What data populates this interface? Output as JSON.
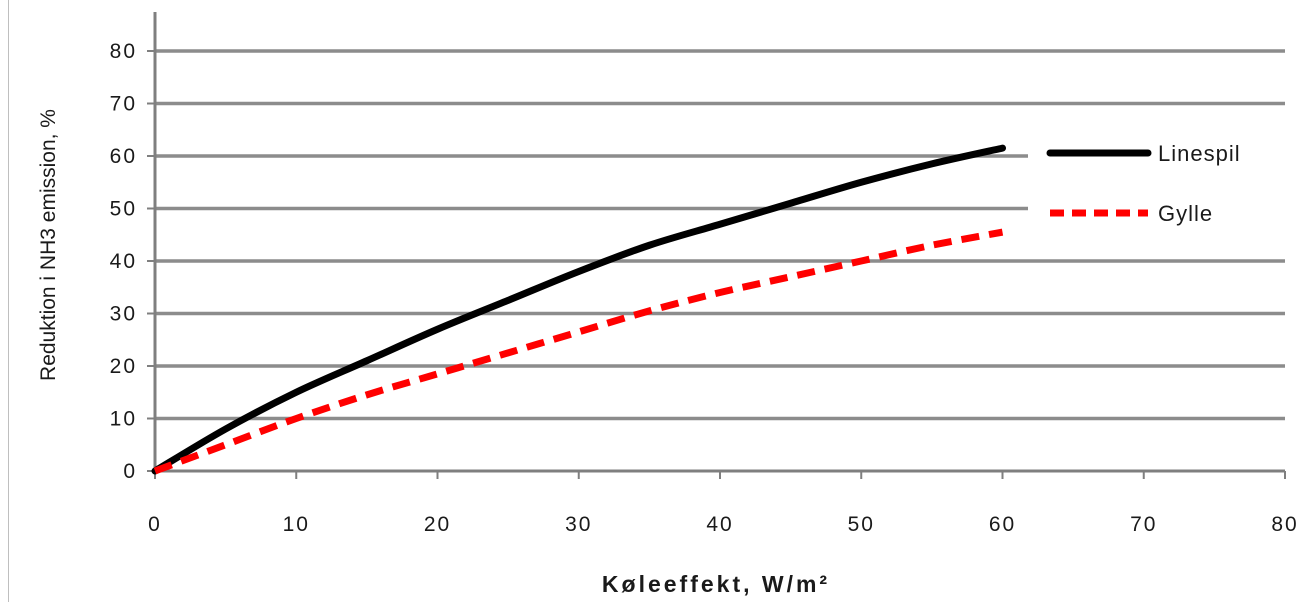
{
  "chart_data": {
    "type": "line",
    "title": "",
    "xlabel": "Køleeffekt, W/m²",
    "ylabel": "Reduktion i NH3 emission, %",
    "xlim": [
      0,
      80
    ],
    "ylim": [
      0,
      80
    ],
    "x_ticks": [
      "0",
      "10",
      "20",
      "30",
      "40",
      "50",
      "60",
      "70",
      "80"
    ],
    "y_ticks": [
      "0",
      "10",
      "20",
      "30",
      "40",
      "50",
      "60",
      "70",
      "80"
    ],
    "grid": "horizontal",
    "legend_position": "right",
    "series": [
      {
        "name": "Linespil",
        "color": "#000000",
        "style": "solid",
        "x": [
          0,
          5,
          10,
          15,
          20,
          25,
          30,
          35,
          40,
          45,
          50,
          55,
          60
        ],
        "y": [
          0,
          8,
          15,
          21,
          27,
          32.5,
          38,
          43,
          47,
          51,
          55,
          58.5,
          61.5
        ]
      },
      {
        "name": "Gylle",
        "color": "#ff0000",
        "style": "dashed",
        "x": [
          0,
          5,
          10,
          15,
          20,
          25,
          30,
          35,
          40,
          45,
          50,
          55,
          60
        ],
        "y": [
          0,
          5,
          10,
          14.5,
          18.5,
          22.5,
          26.5,
          30.5,
          34,
          37,
          40,
          43,
          45.5
        ]
      }
    ]
  }
}
